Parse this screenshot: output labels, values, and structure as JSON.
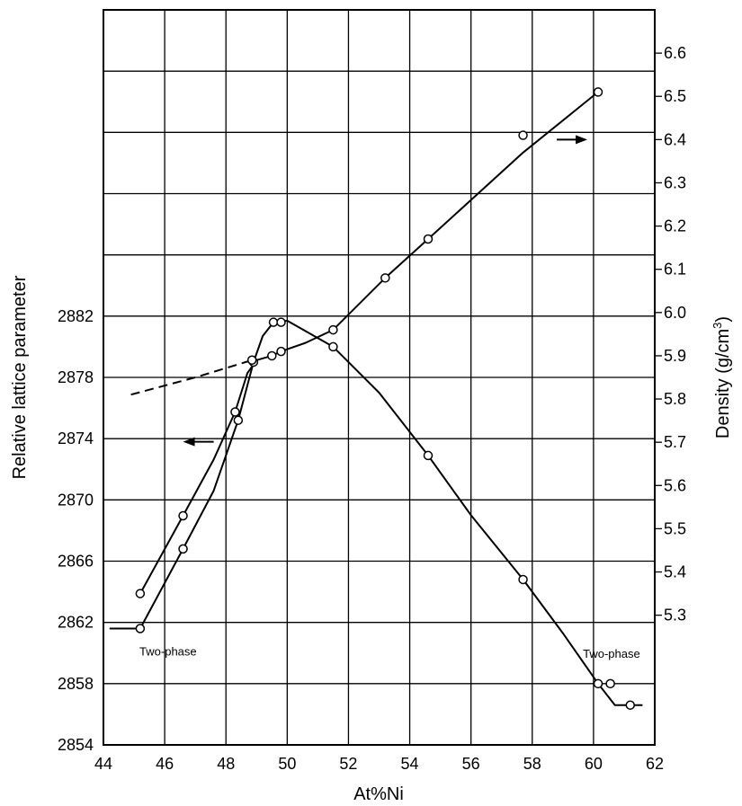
{
  "chart_data": {
    "type": "scatter",
    "xlabel": "At%Ni",
    "ylabel_left": "Relative lattice parameter",
    "ylabel_right_main": "Density (g/cm",
    "ylabel_right_sup": "3",
    "ylabel_right_close": ")",
    "xlim": [
      44,
      62
    ],
    "ylim_left": [
      2854,
      2902
    ],
    "ylim_right": [
      5.0,
      6.7
    ],
    "x_ticks": [
      44,
      46,
      48,
      50,
      52,
      54,
      56,
      58,
      60,
      62
    ],
    "y_left_ticks": [
      2854,
      2858,
      2862,
      2866,
      2870,
      2874,
      2878,
      2882
    ],
    "y_right_ticks": [
      5.3,
      5.4,
      5.5,
      5.6,
      5.7,
      5.8,
      5.9,
      6.0,
      6.1,
      6.2,
      6.3,
      6.4,
      6.5,
      6.6
    ],
    "grid": true,
    "series": [
      {
        "axis": "left",
        "points": [
          [
            45.2,
            2861.6
          ],
          [
            46.6,
            2866.8
          ],
          [
            48.4,
            2875.2
          ],
          [
            48.9,
            2879.0
          ],
          [
            49.55,
            2881.6
          ],
          [
            49.8,
            2881.6
          ],
          [
            51.5,
            2880.0
          ],
          [
            54.6,
            2872.9
          ],
          [
            57.7,
            2864.8
          ],
          [
            60.15,
            2858.0
          ],
          [
            60.55,
            2858.0
          ],
          [
            61.2,
            2856.6
          ]
        ],
        "curve": [
          [
            44.2,
            2861.6
          ],
          [
            45.2,
            2861.6
          ],
          [
            46.6,
            2866.8
          ],
          [
            47.6,
            2870.6
          ],
          [
            48.4,
            2875.2
          ],
          [
            48.9,
            2879.0
          ],
          [
            49.2,
            2880.7
          ],
          [
            49.55,
            2881.6
          ],
          [
            50.0,
            2881.7
          ],
          [
            51.5,
            2880.0
          ],
          [
            53.0,
            2877.0
          ],
          [
            54.6,
            2872.9
          ],
          [
            56.0,
            2869.0
          ],
          [
            57.7,
            2864.8
          ],
          [
            59.0,
            2861.3
          ],
          [
            60.15,
            2858.0
          ],
          [
            60.7,
            2856.6
          ],
          [
            61.6,
            2856.6
          ]
        ]
      },
      {
        "axis": "right",
        "points": [
          [
            45.2,
            5.35
          ],
          [
            46.6,
            5.53
          ],
          [
            48.3,
            5.77
          ],
          [
            48.85,
            5.89
          ],
          [
            49.5,
            5.9
          ],
          [
            49.8,
            5.91
          ],
          [
            51.5,
            5.96
          ],
          [
            53.2,
            6.08
          ],
          [
            54.6,
            6.17
          ],
          [
            57.7,
            6.41
          ],
          [
            60.15,
            6.51
          ]
        ],
        "curve": [
          [
            45.2,
            5.35
          ],
          [
            46.6,
            5.53
          ],
          [
            47.6,
            5.66
          ],
          [
            48.3,
            5.77
          ],
          [
            48.7,
            5.86
          ],
          [
            49.0,
            5.89
          ],
          [
            49.5,
            5.9
          ],
          [
            49.8,
            5.91
          ],
          [
            50.6,
            5.93
          ],
          [
            51.5,
            5.96
          ],
          [
            53.2,
            6.08
          ],
          [
            54.6,
            6.17
          ],
          [
            57.7,
            6.37
          ],
          [
            60.15,
            6.51
          ]
        ],
        "dashed_extension": [
          [
            44.9,
            5.81
          ],
          [
            47.0,
            5.85
          ],
          [
            48.85,
            5.89
          ]
        ]
      }
    ],
    "annotations": [
      {
        "text": "Two-phase",
        "x": 45.0,
        "y_left": 2861.0
      },
      {
        "text": "Two-phase",
        "x": 61.0,
        "y_left": 2859.4
      }
    ],
    "arrows": [
      {
        "direction": "left",
        "x_from": 47.6,
        "x_to": 46.6,
        "y_left": 2873.8
      },
      {
        "direction": "right",
        "x_from": 58.8,
        "x_to": 59.8,
        "y_right": 6.4
      }
    ]
  }
}
